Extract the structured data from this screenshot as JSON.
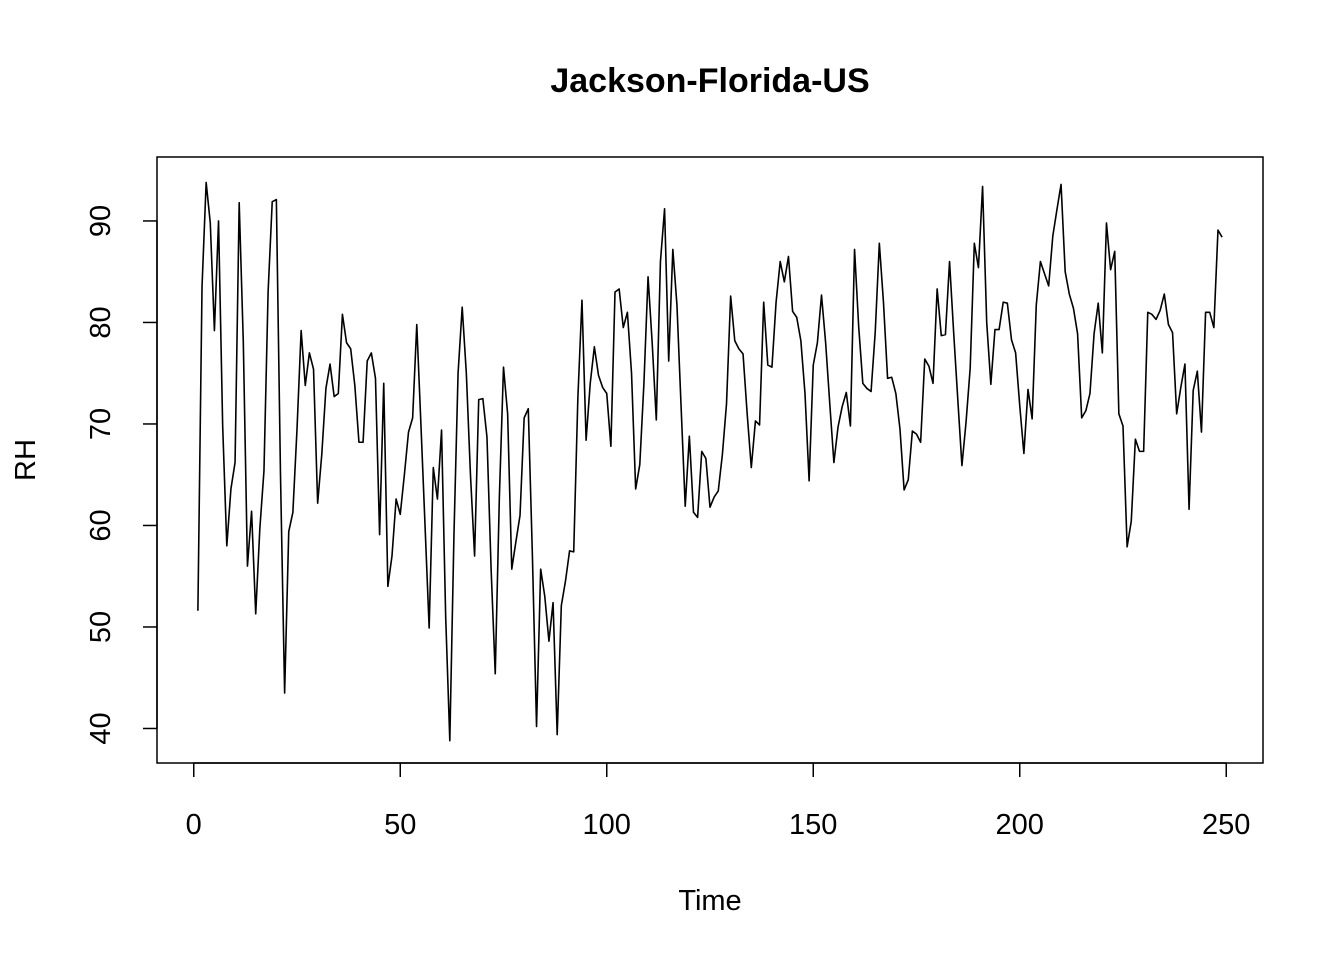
{
  "chart_data": {
    "type": "line",
    "title": "Jackson-Florida-US",
    "xlabel": "Time",
    "ylabel": "RH",
    "xlim": [
      -8.9,
      258.9
    ],
    "ylim": [
      36.6,
      96.3
    ],
    "x_ticks": [
      0,
      50,
      100,
      150,
      200,
      250
    ],
    "y_ticks": [
      40,
      50,
      60,
      70,
      80,
      90
    ],
    "grid": false,
    "legend": "none",
    "line_color": "#000000",
    "series": [
      {
        "x_start": 1,
        "values": [
          51.6,
          83.5,
          93.8,
          89.8,
          79.2,
          90.0,
          69.8,
          58.0,
          63.6,
          66.2,
          91.8,
          78.0,
          56.0,
          61.4,
          51.3,
          59.7,
          65.4,
          83.0,
          91.9,
          92.1,
          65.0,
          43.5,
          59.4,
          61.3,
          69.5,
          79.2,
          73.8,
          77.0,
          75.4,
          62.2,
          67.0,
          73.5,
          75.9,
          72.7,
          73.0,
          80.8,
          78.0,
          77.4,
          73.8,
          68.2,
          68.2,
          76.2,
          77.0,
          74.5,
          59.1,
          74.0,
          54.0,
          57.0,
          62.6,
          61.1,
          65.0,
          69.2,
          70.6,
          79.8,
          70.0,
          60.0,
          49.9,
          65.7,
          62.6,
          69.4,
          51.0,
          38.8,
          59.0,
          75.0,
          81.5,
          75.0,
          65.0,
          57.0,
          72.4,
          72.5,
          68.7,
          55.7,
          45.4,
          62.8,
          75.6,
          71.0,
          55.7,
          58.4,
          61.0,
          70.6,
          71.5,
          57.0,
          40.2,
          55.7,
          53.0,
          48.6,
          52.4,
          39.4,
          52.1,
          54.5,
          57.5,
          57.4,
          72.5,
          82.2,
          68.4,
          74.0,
          77.6,
          74.8,
          73.6,
          73.0,
          67.8,
          83.0,
          83.3,
          79.5,
          81.0,
          75.0,
          63.6,
          66.0,
          74.0,
          84.5,
          78.0,
          70.4,
          86.0,
          91.2,
          76.2,
          87.2,
          81.7,
          71.7,
          61.9,
          68.8,
          61.3,
          60.8,
          67.3,
          66.6,
          61.8,
          62.8,
          63.4,
          67.0,
          72.0,
          82.6,
          78.2,
          77.4,
          76.9,
          71.0,
          65.7,
          70.3,
          69.9,
          82.0,
          75.8,
          75.6,
          82.0,
          86.0,
          84.0,
          86.5,
          81.1,
          80.5,
          78.2,
          73.0,
          64.4,
          75.8,
          78.0,
          82.7,
          78.0,
          72.0,
          66.2,
          69.7,
          71.7,
          73.1,
          69.8,
          87.2,
          79.6,
          74.0,
          73.5,
          73.2,
          79.0,
          87.8,
          82.0,
          74.5,
          74.6,
          73.0,
          69.5,
          63.5,
          64.5,
          69.3,
          69.0,
          68.2,
          76.4,
          75.7,
          74.0,
          83.3,
          78.7,
          78.8,
          86.0,
          79.0,
          72.4,
          65.9,
          70.2,
          75.5,
          87.8,
          85.4,
          93.4,
          80.0,
          73.9,
          79.3,
          79.3,
          82.0,
          81.9,
          78.3,
          77.0,
          71.8,
          67.1,
          73.4,
          70.5,
          81.7,
          86.0,
          84.8,
          83.6,
          88.5,
          91.1,
          93.6,
          85.0,
          82.8,
          81.4,
          78.9,
          70.6,
          71.3,
          73.0,
          78.9,
          81.9,
          77.0,
          89.8,
          85.2,
          87.0,
          71.0,
          69.8,
          57.9,
          60.4,
          68.5,
          67.3,
          67.3,
          81.0,
          80.8,
          80.3,
          81.2,
          82.8,
          79.8,
          79.0,
          71.0,
          73.6,
          75.9,
          61.6,
          73.3,
          75.2,
          69.2,
          81.0,
          81.0,
          79.5,
          89.1,
          88.4
        ]
      }
    ]
  }
}
